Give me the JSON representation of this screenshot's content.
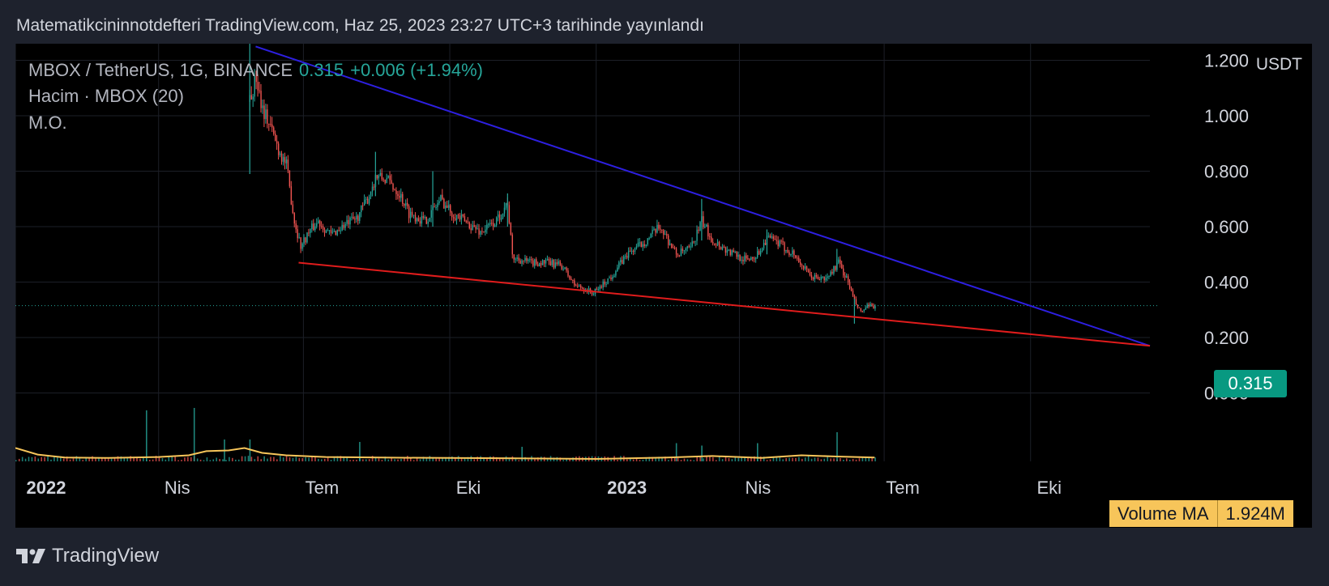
{
  "header": {
    "published": "Matematikcininnotdefteri TradingView.com, Haz 25, 2023 23:27 UTC+3 tarihinde yayınlandı"
  },
  "legend": {
    "symbol": "MBOX / TetherUS, 1G, BINANCE",
    "price": "0.315",
    "change": "+0.006 (+1.94%)",
    "volume": "Hacim · MBOX (20)",
    "ma": "M.O."
  },
  "price_axis": {
    "unit": "USDT",
    "current_price": "0.315"
  },
  "volume_badge": {
    "label": "Volume MA",
    "value": "1.924M"
  },
  "footer": {
    "brand": "TradingView"
  },
  "colors": {
    "up": "#26a69a",
    "down": "#ef5350",
    "resistance": "#2d1fe0",
    "support": "#e01c1c",
    "volume_ma": "#f7c55a",
    "background": "#000000"
  },
  "chart_data": {
    "type": "candlestick",
    "x_ticks": [
      {
        "label": "2022",
        "bold": true
      },
      {
        "label": "Nis",
        "bold": false
      },
      {
        "label": "Tem",
        "bold": false
      },
      {
        "label": "Eki",
        "bold": false
      },
      {
        "label": "2023",
        "bold": true
      },
      {
        "label": "Nis",
        "bold": false
      },
      {
        "label": "Tem",
        "bold": false
      },
      {
        "label": "Eki",
        "bold": false
      }
    ],
    "x_range": [
      "2022-01-01",
      "2023-12-15"
    ],
    "ylim": [
      -0.2,
      1.26
    ],
    "y_ticks": [
      "1.200",
      "1.000",
      "0.800",
      "0.600",
      "0.400",
      "0.200",
      "0.000"
    ],
    "y_tick_values": [
      1.2,
      1.0,
      0.8,
      0.6,
      0.4,
      0.2,
      0.0
    ],
    "close_path": [
      [
        "2022-05-28",
        1.05
      ],
      [
        "2022-06-01",
        1.14
      ],
      [
        "2022-06-05",
        1.03
      ],
      [
        "2022-06-10",
        0.96
      ],
      [
        "2022-06-15",
        0.88
      ],
      [
        "2022-06-20",
        0.82
      ],
      [
        "2022-06-25",
        0.62
      ],
      [
        "2022-06-29",
        0.53
      ],
      [
        "2022-07-04",
        0.58
      ],
      [
        "2022-07-10",
        0.62
      ],
      [
        "2022-07-18",
        0.57
      ],
      [
        "2022-07-25",
        0.6
      ],
      [
        "2022-08-03",
        0.63
      ],
      [
        "2022-08-10",
        0.7
      ],
      [
        "2022-08-15",
        0.78
      ],
      [
        "2022-08-22",
        0.77
      ],
      [
        "2022-08-30",
        0.72
      ],
      [
        "2022-09-05",
        0.65
      ],
      [
        "2022-09-15",
        0.62
      ],
      [
        "2022-09-20",
        0.66
      ],
      [
        "2022-09-25",
        0.7
      ],
      [
        "2022-10-02",
        0.65
      ],
      [
        "2022-10-10",
        0.62
      ],
      [
        "2022-10-20",
        0.58
      ],
      [
        "2022-10-30",
        0.62
      ],
      [
        "2022-11-06",
        0.69
      ],
      [
        "2022-11-09",
        0.49
      ],
      [
        "2022-11-20",
        0.47
      ],
      [
        "2022-12-01",
        0.47
      ],
      [
        "2022-12-10",
        0.46
      ],
      [
        "2022-12-18",
        0.39
      ],
      [
        "2022-12-30",
        0.36
      ],
      [
        "2023-01-10",
        0.42
      ],
      [
        "2023-01-20",
        0.5
      ],
      [
        "2023-02-01",
        0.55
      ],
      [
        "2023-02-10",
        0.6
      ],
      [
        "2023-02-20",
        0.5
      ],
      [
        "2023-03-01",
        0.52
      ],
      [
        "2023-03-08",
        0.62
      ],
      [
        "2023-03-15",
        0.55
      ],
      [
        "2023-03-25",
        0.51
      ],
      [
        "2023-04-05",
        0.48
      ],
      [
        "2023-04-12",
        0.5
      ],
      [
        "2023-04-18",
        0.56
      ],
      [
        "2023-04-25",
        0.54
      ],
      [
        "2023-05-05",
        0.5
      ],
      [
        "2023-05-15",
        0.42
      ],
      [
        "2023-05-25",
        0.41
      ],
      [
        "2023-06-02",
        0.47
      ],
      [
        "2023-06-08",
        0.4
      ],
      [
        "2023-06-12",
        0.33
      ],
      [
        "2023-06-16",
        0.29
      ],
      [
        "2023-06-20",
        0.31
      ],
      [
        "2023-06-25",
        0.315
      ]
    ],
    "candle_range": [
      "2022-05-28",
      "2023-06-25"
    ],
    "spikes": [
      [
        "2022-05-28",
        1.28,
        0.79
      ],
      [
        "2022-08-15",
        0.87,
        0.71
      ],
      [
        "2022-09-20",
        0.8,
        0.6
      ],
      [
        "2022-11-06",
        0.72,
        0.6
      ],
      [
        "2023-03-08",
        0.7,
        0.55
      ],
      [
        "2023-04-18",
        0.59,
        0.5
      ],
      [
        "2023-06-01",
        0.52,
        0.45
      ],
      [
        "2023-06-12",
        0.34,
        0.25
      ]
    ],
    "trendlines": [
      {
        "name": "resistance",
        "from": [
          "2022-06-01",
          1.25
        ],
        "to": [
          "2023-12-15",
          0.17
        ]
      },
      {
        "name": "support",
        "from": [
          "2022-06-28",
          0.47
        ],
        "to": [
          "2023-12-15",
          0.17
        ]
      }
    ],
    "last_price_line": 0.315,
    "volume": {
      "ma_value": "1.924M",
      "ma_path": [
        [
          "2022-01-01",
          0.55
        ],
        [
          "2022-01-15",
          0.28
        ],
        [
          "2022-02-01",
          0.16
        ],
        [
          "2022-03-01",
          0.14
        ],
        [
          "2022-04-01",
          0.18
        ],
        [
          "2022-04-20",
          0.25
        ],
        [
          "2022-05-01",
          0.42
        ],
        [
          "2022-05-15",
          0.45
        ],
        [
          "2022-05-25",
          0.55
        ],
        [
          "2022-06-05",
          0.35
        ],
        [
          "2022-06-20",
          0.25
        ],
        [
          "2022-07-15",
          0.18
        ],
        [
          "2022-09-01",
          0.15
        ],
        [
          "2022-11-01",
          0.13
        ],
        [
          "2023-01-01",
          0.1
        ],
        [
          "2023-02-15",
          0.16
        ],
        [
          "2023-03-15",
          0.22
        ],
        [
          "2023-04-15",
          0.14
        ],
        [
          "2023-05-10",
          0.25
        ],
        [
          "2023-06-01",
          0.2
        ],
        [
          "2023-06-25",
          0.16
        ]
      ],
      "spikes": [
        [
          "2022-03-24",
          2.1
        ],
        [
          "2022-04-23",
          2.2
        ],
        [
          "2022-05-12",
          0.9
        ],
        [
          "2022-05-28",
          0.9
        ],
        [
          "2022-08-05",
          0.8
        ],
        [
          "2022-11-15",
          0.6
        ],
        [
          "2023-02-20",
          0.75
        ],
        [
          "2023-03-08",
          0.65
        ],
        [
          "2023-04-12",
          0.75
        ],
        [
          "2023-06-01",
          1.2
        ]
      ],
      "v_max": 2.2
    }
  }
}
